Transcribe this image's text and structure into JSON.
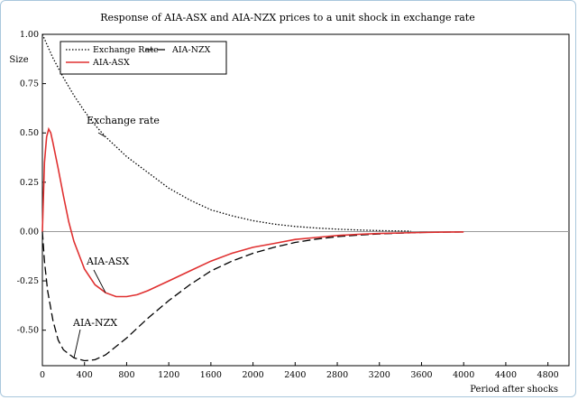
{
  "chart_data": {
    "type": "line",
    "title": "Response of AIA-ASX and AIA-NZX prices to a unit shock in exchange rate",
    "xlabel": "Period after shocks",
    "ylabel": "Size",
    "xlim": [
      0,
      5000
    ],
    "ylim": [
      -0.68,
      1.0
    ],
    "xticks": [
      "0",
      "400",
      "800",
      "1200",
      "1600",
      "2000",
      "2400",
      "2800",
      "3200",
      "3600",
      "4000",
      "4400",
      "4800"
    ],
    "yticks": [
      "1.00",
      "0.75",
      "0.50",
      "0.25",
      "0.00",
      "-0.25",
      "-0.50"
    ],
    "grid": false,
    "legend_position": "top-left",
    "series": [
      {
        "name": "Exchange Rate",
        "style": "dotted",
        "color": "#000000",
        "x": [
          0,
          100,
          200,
          300,
          400,
          500,
          600,
          700,
          800,
          1000,
          1200,
          1400,
          1600,
          1800,
          2000,
          2200,
          2400,
          2600,
          2800,
          3000,
          3200,
          3400,
          3500
        ],
        "y": [
          1.0,
          0.88,
          0.78,
          0.69,
          0.61,
          0.54,
          0.48,
          0.43,
          0.38,
          0.3,
          0.22,
          0.16,
          0.11,
          0.08,
          0.055,
          0.038,
          0.026,
          0.018,
          0.012,
          0.008,
          0.005,
          0.003,
          0.002
        ]
      },
      {
        "name": "AIA-NZX",
        "style": "dashed",
        "color": "#000000",
        "x": [
          0,
          20,
          50,
          100,
          150,
          200,
          300,
          400,
          500,
          600,
          800,
          1000,
          1200,
          1400,
          1600,
          1800,
          2000,
          2200,
          2400,
          2600,
          2800,
          3000,
          3200,
          3400,
          3600,
          3800,
          4000
        ],
        "y": [
          0.0,
          -0.15,
          -0.3,
          -0.45,
          -0.55,
          -0.6,
          -0.64,
          -0.655,
          -0.65,
          -0.625,
          -0.54,
          -0.44,
          -0.35,
          -0.27,
          -0.2,
          -0.15,
          -0.11,
          -0.08,
          -0.055,
          -0.038,
          -0.026,
          -0.018,
          -0.012,
          -0.008,
          -0.005,
          -0.003,
          -0.002
        ]
      },
      {
        "name": "AIA-ASX",
        "style": "solid",
        "color": "#e03030",
        "x": [
          0,
          20,
          40,
          60,
          80,
          100,
          150,
          200,
          250,
          300,
          400,
          500,
          600,
          700,
          800,
          900,
          1000,
          1200,
          1400,
          1600,
          1800,
          2000,
          2200,
          2400,
          2600,
          2800,
          3000,
          3200,
          3400,
          3600,
          3800,
          4000
        ],
        "y": [
          0.0,
          0.35,
          0.48,
          0.52,
          0.5,
          0.45,
          0.32,
          0.18,
          0.05,
          -0.05,
          -0.19,
          -0.27,
          -0.31,
          -0.33,
          -0.33,
          -0.32,
          -0.3,
          -0.25,
          -0.2,
          -0.15,
          -0.11,
          -0.08,
          -0.06,
          -0.04,
          -0.03,
          -0.02,
          -0.014,
          -0.01,
          -0.007,
          -0.005,
          -0.003,
          -0.002
        ]
      }
    ],
    "annotations": [
      {
        "text": "Exchange rate",
        "series": "Exchange Rate"
      },
      {
        "text": "AIA-ASX",
        "series": "AIA-ASX"
      },
      {
        "text": "AIA-NZX",
        "series": "AIA-NZX"
      }
    ]
  }
}
